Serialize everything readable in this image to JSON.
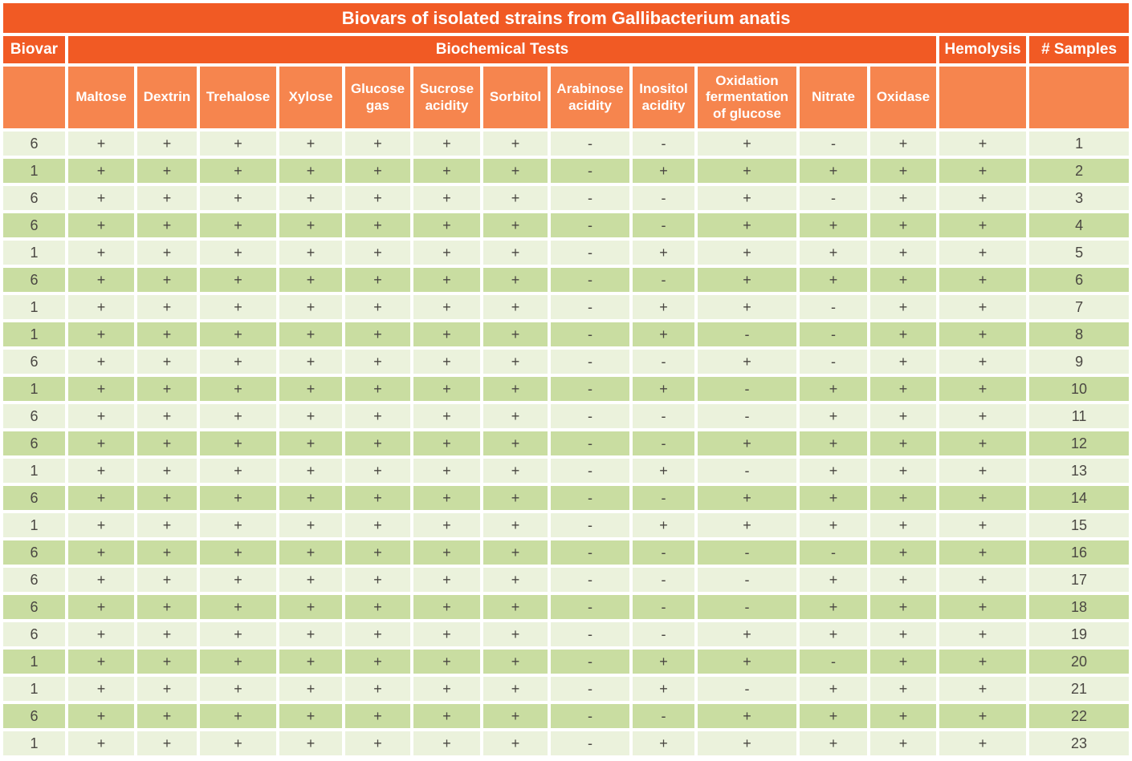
{
  "colors": {
    "header_orange": "#F15A24",
    "subheader_orange": "#F6854E",
    "row_light_green": "#EBF2DC",
    "row_dark_green": "#C9DDA1",
    "cell_text": "#4A4742",
    "header_text": "#FFFFFF",
    "background": "#FFFFFF"
  },
  "chart_data": {
    "type": "table",
    "title": "Biovars of isolated strains from Gallibacterium anatis",
    "column_groups": {
      "biovar": "Biovar",
      "tests": "Biochemical Tests",
      "hemolysis": "Hemolysis",
      "samples": "# Samples"
    },
    "test_columns": [
      "Maltose",
      "Dextrin",
      "Trehalose",
      "Xylose",
      "Glucose gas",
      "Sucrose acidity",
      "Sorbitol",
      "Arabinose acidity",
      "Inositol acidity",
      "Oxidation fermentation of glucose",
      "Nitrate",
      "Oxidase"
    ],
    "rows": [
      {
        "biovar": "6",
        "tests": [
          "+",
          "+",
          "+",
          "+",
          "+",
          "+",
          "+",
          "-",
          "-",
          "+",
          "-",
          "+"
        ],
        "hemolysis": "+",
        "samples": "1"
      },
      {
        "biovar": "1",
        "tests": [
          "+",
          "+",
          "+",
          "+",
          "+",
          "+",
          "+",
          "-",
          "+",
          "+",
          "+",
          "+"
        ],
        "hemolysis": "+",
        "samples": "2"
      },
      {
        "biovar": "6",
        "tests": [
          "+",
          "+",
          "+",
          "+",
          "+",
          "+",
          "+",
          "-",
          "-",
          "+",
          "-",
          "+"
        ],
        "hemolysis": "+",
        "samples": "3"
      },
      {
        "biovar": "6",
        "tests": [
          "+",
          "+",
          "+",
          "+",
          "+",
          "+",
          "+",
          "-",
          "-",
          "+",
          "+",
          "+"
        ],
        "hemolysis": "+",
        "samples": "4"
      },
      {
        "biovar": "1",
        "tests": [
          "+",
          "+",
          "+",
          "+",
          "+",
          "+",
          "+",
          "-",
          "+",
          "+",
          "+",
          "+"
        ],
        "hemolysis": "+",
        "samples": "5"
      },
      {
        "biovar": "6",
        "tests": [
          "+",
          "+",
          "+",
          "+",
          "+",
          "+",
          "+",
          "-",
          "-",
          "+",
          "+",
          "+"
        ],
        "hemolysis": "+",
        "samples": "6"
      },
      {
        "biovar": "1",
        "tests": [
          "+",
          "+",
          "+",
          "+",
          "+",
          "+",
          "+",
          "-",
          "+",
          "+",
          "-",
          "+"
        ],
        "hemolysis": "+",
        "samples": "7"
      },
      {
        "biovar": "1",
        "tests": [
          "+",
          "+",
          "+",
          "+",
          "+",
          "+",
          "+",
          "-",
          "+",
          "-",
          "-",
          "+"
        ],
        "hemolysis": "+",
        "samples": "8"
      },
      {
        "biovar": "6",
        "tests": [
          "+",
          "+",
          "+",
          "+",
          "+",
          "+",
          "+",
          "-",
          "-",
          "+",
          "-",
          "+"
        ],
        "hemolysis": "+",
        "samples": "9"
      },
      {
        "biovar": "1",
        "tests": [
          "+",
          "+",
          "+",
          "+",
          "+",
          "+",
          "+",
          "-",
          "+",
          "-",
          "+",
          "+"
        ],
        "hemolysis": "+",
        "samples": "10"
      },
      {
        "biovar": "6",
        "tests": [
          "+",
          "+",
          "+",
          "+",
          "+",
          "+",
          "+",
          "-",
          "-",
          "-",
          "+",
          "+"
        ],
        "hemolysis": "+",
        "samples": "11"
      },
      {
        "biovar": "6",
        "tests": [
          "+",
          "+",
          "+",
          "+",
          "+",
          "+",
          "+",
          "-",
          "-",
          "+",
          "+",
          "+"
        ],
        "hemolysis": "+",
        "samples": "12"
      },
      {
        "biovar": "1",
        "tests": [
          "+",
          "+",
          "+",
          "+",
          "+",
          "+",
          "+",
          "-",
          "+",
          "-",
          "+",
          "+"
        ],
        "hemolysis": "+",
        "samples": "13"
      },
      {
        "biovar": "6",
        "tests": [
          "+",
          "+",
          "+",
          "+",
          "+",
          "+",
          "+",
          "-",
          "-",
          "+",
          "+",
          "+"
        ],
        "hemolysis": "+",
        "samples": "14"
      },
      {
        "biovar": "1",
        "tests": [
          "+",
          "+",
          "+",
          "+",
          "+",
          "+",
          "+",
          "-",
          "+",
          "+",
          "+",
          "+"
        ],
        "hemolysis": "+",
        "samples": "15"
      },
      {
        "biovar": "6",
        "tests": [
          "+",
          "+",
          "+",
          "+",
          "+",
          "+",
          "+",
          "-",
          "-",
          "-",
          "-",
          "+"
        ],
        "hemolysis": "+",
        "samples": "16"
      },
      {
        "biovar": "6",
        "tests": [
          "+",
          "+",
          "+",
          "+",
          "+",
          "+",
          "+",
          "-",
          "-",
          "-",
          "+",
          "+"
        ],
        "hemolysis": "+",
        "samples": "17"
      },
      {
        "biovar": "6",
        "tests": [
          "+",
          "+",
          "+",
          "+",
          "+",
          "+",
          "+",
          "-",
          "-",
          "-",
          "+",
          "+"
        ],
        "hemolysis": "+",
        "samples": "18"
      },
      {
        "biovar": "6",
        "tests": [
          "+",
          "+",
          "+",
          "+",
          "+",
          "+",
          "+",
          "-",
          "-",
          "+",
          "+",
          "+"
        ],
        "hemolysis": "+",
        "samples": "19"
      },
      {
        "biovar": "1",
        "tests": [
          "+",
          "+",
          "+",
          "+",
          "+",
          "+",
          "+",
          "-",
          "+",
          "+",
          "-",
          "+"
        ],
        "hemolysis": "+",
        "samples": "20"
      },
      {
        "biovar": "1",
        "tests": [
          "+",
          "+",
          "+",
          "+",
          "+",
          "+",
          "+",
          "-",
          "+",
          "-",
          "+",
          "+"
        ],
        "hemolysis": "+",
        "samples": "21"
      },
      {
        "biovar": "6",
        "tests": [
          "+",
          "+",
          "+",
          "+",
          "+",
          "+",
          "+",
          "-",
          "-",
          "+",
          "+",
          "+"
        ],
        "hemolysis": "+",
        "samples": "22"
      },
      {
        "biovar": "1",
        "tests": [
          "+",
          "+",
          "+",
          "+",
          "+",
          "+",
          "+",
          "-",
          "+",
          "+",
          "+",
          "+"
        ],
        "hemolysis": "+",
        "samples": "23"
      }
    ]
  }
}
